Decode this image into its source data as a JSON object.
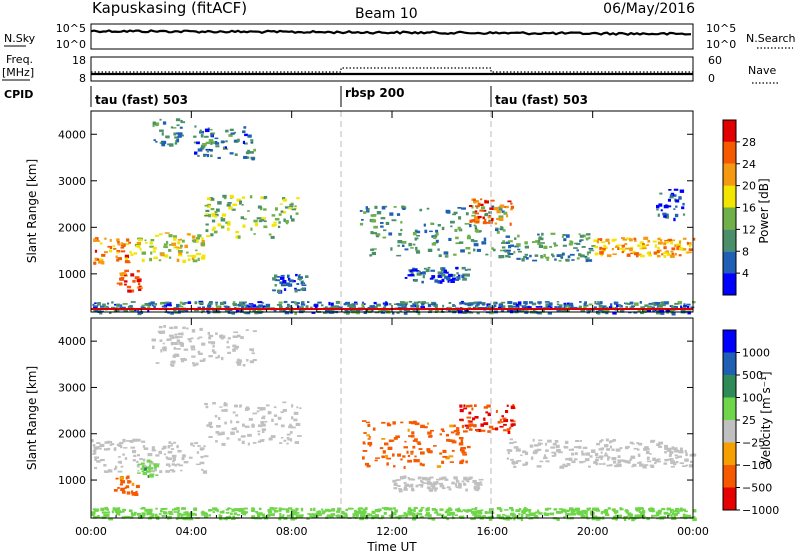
{
  "header": {
    "station": "Kapuskasing (fitACF)",
    "beam": "Beam 10",
    "date": "06/May/2016"
  },
  "strips": {
    "nsky_label": "N.Sky",
    "nsky_ticks": [
      "10^5",
      "10^0"
    ],
    "nsearch_label": "N.Search",
    "nsearch_ticks": [
      "10^5",
      "10^0"
    ],
    "freq_label_1": "Freq.",
    "freq_label_2": "[MHz]",
    "freq_ticks": [
      "18",
      "8"
    ],
    "nave_label": "Nave",
    "nave_ticks": [
      "60",
      "0"
    ],
    "cpid_label": "CPID",
    "cpid_segments": [
      {
        "name": "tau (fast) 503",
        "start": 0,
        "end": 10
      },
      {
        "name": "rbsp 200",
        "start": 10,
        "end": 16
      },
      {
        "name": "tau (fast) 503",
        "start": 16,
        "end": 24
      }
    ]
  },
  "chart_data": [
    {
      "type": "heatmap",
      "panel": "power",
      "ylabel": "Slant Range [km]",
      "xlim": [
        0,
        24
      ],
      "ylim": [
        180,
        4500
      ],
      "yticks": [
        1000,
        2000,
        3000,
        4000
      ],
      "colorbar_label": "Power [dB]",
      "colorbar_ticks": [
        "4",
        "8",
        "12",
        "16",
        "20",
        "24",
        "28"
      ],
      "colors": [
        "#0000ff",
        "#1f5fb4",
        "#4a8f6a",
        "#6fb04a",
        "#f2e600",
        "#f59a10",
        "#f55a00",
        "#e00000"
      ],
      "regions": [
        {
          "x": [
            0,
            1.5
          ],
          "y": [
            1250,
            1800
          ],
          "v": 24
        },
        {
          "x": [
            1.0,
            2.0
          ],
          "y": [
            650,
            1100
          ],
          "v": 26
        },
        {
          "x": [
            1.5,
            4.5
          ],
          "y": [
            1300,
            1900
          ],
          "v": 18
        },
        {
          "x": [
            4.5,
            8.3
          ],
          "y": [
            1800,
            2700
          ],
          "v": 14
        },
        {
          "x": [
            2.4,
            3.6
          ],
          "y": [
            3800,
            4350
          ],
          "v": 10
        },
        {
          "x": [
            4.0,
            6.5
          ],
          "y": [
            3500,
            4200
          ],
          "v": 8
        },
        {
          "x": [
            7.2,
            8.6
          ],
          "y": [
            650,
            1000
          ],
          "v": 6
        },
        {
          "x": [
            10.7,
            16.5
          ],
          "y": [
            1400,
            2500
          ],
          "v": 10
        },
        {
          "x": [
            15.0,
            16.8
          ],
          "y": [
            2100,
            2650
          ],
          "v": 26
        },
        {
          "x": [
            12.5,
            15.0
          ],
          "y": [
            850,
            1150
          ],
          "v": 6
        },
        {
          "x": [
            16.5,
            20.0
          ],
          "y": [
            1300,
            1900
          ],
          "v": 10
        },
        {
          "x": [
            20.0,
            24.0
          ],
          "y": [
            1400,
            1800
          ],
          "v": 22
        },
        {
          "x": [
            22.5,
            23.6
          ],
          "y": [
            2200,
            2900
          ],
          "v": 5
        },
        {
          "x": [
            0,
            24
          ],
          "y": [
            180,
            420
          ],
          "v": 8
        }
      ]
    },
    {
      "type": "heatmap",
      "panel": "velocity",
      "xlabel": "Time UT",
      "ylabel": "Slant Range [km]",
      "xlim": [
        0,
        24
      ],
      "ylim": [
        180,
        4500
      ],
      "xticks": [
        "00:00",
        "04:00",
        "08:00",
        "12:00",
        "16:00",
        "20:00",
        "00:00"
      ],
      "yticks": [
        1000,
        2000,
        3000,
        4000
      ],
      "colorbar_label": "Velocity [m s⁻¹]",
      "colorbar_ticks": [
        "1000",
        "500",
        "100",
        "25",
        "−25",
        "−100",
        "−500",
        "−1000"
      ],
      "colors": [
        "#0000ff",
        "#1f5fb4",
        "#2e8b57",
        "#6fd64a",
        "#c0c0c0",
        "#f5a000",
        "#f55a00",
        "#e60000"
      ],
      "regions": [
        {
          "x": [
            0,
            4.5
          ],
          "y": [
            1200,
            1900
          ],
          "v": 0
        },
        {
          "x": [
            0.9,
            1.8
          ],
          "y": [
            700,
            1100
          ],
          "v": -150
        },
        {
          "x": [
            1.8,
            2.6
          ],
          "y": [
            1100,
            1450
          ],
          "v": 80
        },
        {
          "x": [
            4.5,
            8.3
          ],
          "y": [
            1800,
            2700
          ],
          "v": 0
        },
        {
          "x": [
            2.4,
            6.5
          ],
          "y": [
            3500,
            4350
          ],
          "v": 0
        },
        {
          "x": [
            10.8,
            15.0
          ],
          "y": [
            1300,
            2300
          ],
          "v": -150
        },
        {
          "x": [
            14.5,
            16.8
          ],
          "y": [
            2000,
            2650
          ],
          "v": -500
        },
        {
          "x": [
            16.5,
            24.0
          ],
          "y": [
            1300,
            1900
          ],
          "v": 0
        },
        {
          "x": [
            12.0,
            15.5
          ],
          "y": [
            800,
            1100
          ],
          "v": 0
        },
        {
          "x": [
            0,
            24
          ],
          "y": [
            180,
            420
          ],
          "v": 60
        }
      ]
    }
  ]
}
